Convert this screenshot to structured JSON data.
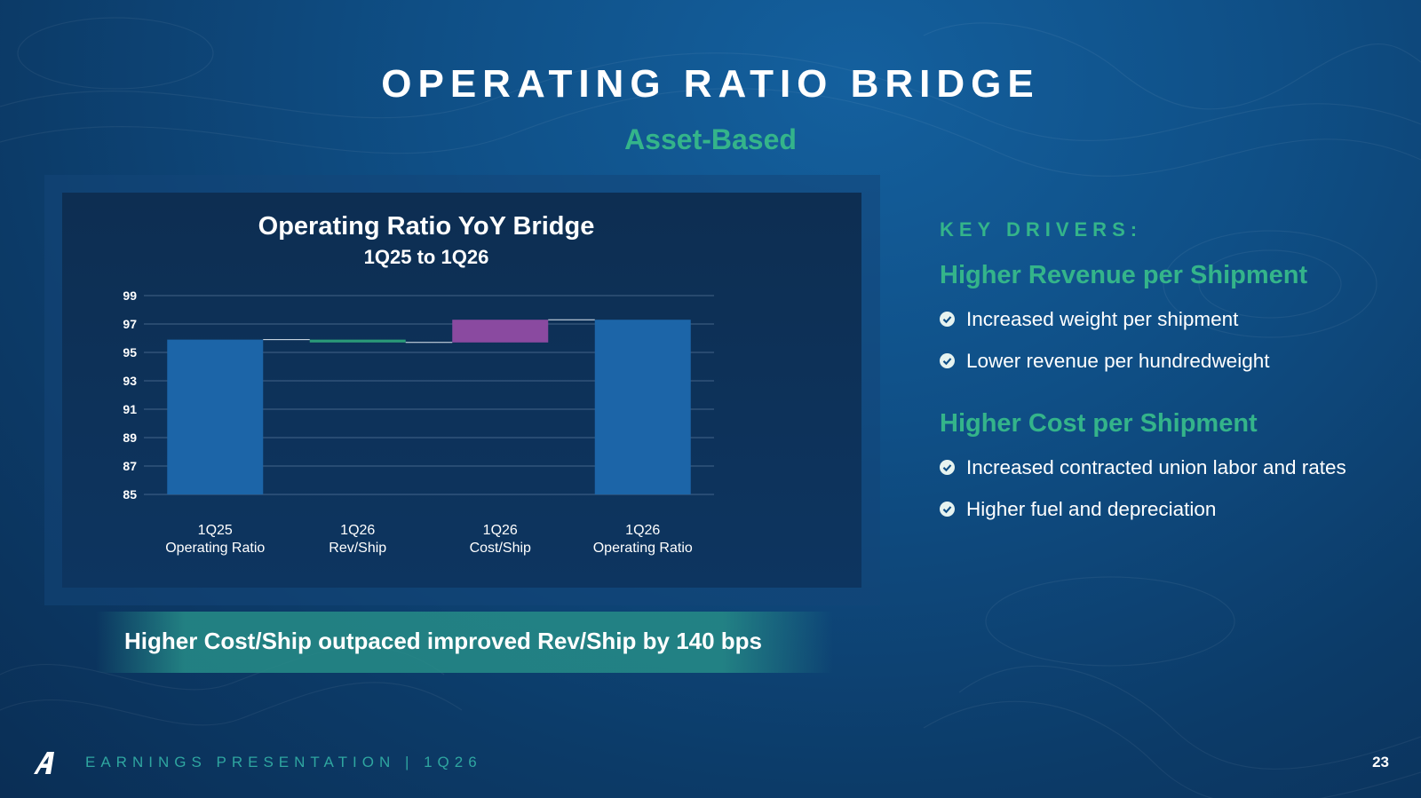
{
  "slide": {
    "title": "OPERATING RATIO BRIDGE",
    "subtitle": "Asset-Based",
    "callout": "Higher Cost/Ship outpaced improved Rev/Ship by 140 bps"
  },
  "chart_data": {
    "type": "bar",
    "subtype": "waterfall",
    "title": "Operating Ratio YoY Bridge",
    "subtitle": "1Q25 to 1Q26",
    "xlabel": "",
    "ylabel": "",
    "ylim": [
      85,
      99
    ],
    "yticks": [
      85,
      87,
      89,
      91,
      93,
      95,
      97,
      99
    ],
    "grid": true,
    "categories": [
      {
        "line1": "1Q25",
        "line2": "Operating Ratio"
      },
      {
        "line1": "1Q26",
        "line2": "Rev/Ship"
      },
      {
        "line1": "1Q26",
        "line2": "Cost/Ship"
      },
      {
        "line1": "1Q26",
        "line2": "Operating Ratio"
      }
    ],
    "bars": [
      {
        "kind": "total",
        "start": 85,
        "end": 95.9,
        "color": "#1c65a8"
      },
      {
        "kind": "delta",
        "start": 95.9,
        "end": 95.7,
        "color": "#2a9a78"
      },
      {
        "kind": "delta",
        "start": 95.7,
        "end": 97.3,
        "color": "#8a4aa0"
      },
      {
        "kind": "total",
        "start": 85,
        "end": 97.3,
        "color": "#1c65a8"
      }
    ]
  },
  "drivers": {
    "label": "KEY DRIVERS:",
    "groups": [
      {
        "heading": "Higher Revenue per Shipment",
        "bullets": [
          "Increased weight per shipment",
          "Lower revenue per hundredweight"
        ]
      },
      {
        "heading": "Higher Cost per Shipment",
        "bullets": [
          "Increased contracted union labor and rates",
          "Higher fuel and depreciation"
        ]
      }
    ]
  },
  "footer": {
    "text": "EARNINGS PRESENTATION  |  1Q26",
    "page": "23",
    "logo_icon": "a-logo-icon"
  },
  "colors": {
    "accent_green": "#34b48a",
    "bar_blue": "#1c65a8",
    "delta_green": "#2a9a78",
    "delta_purple": "#8a4aa0"
  }
}
